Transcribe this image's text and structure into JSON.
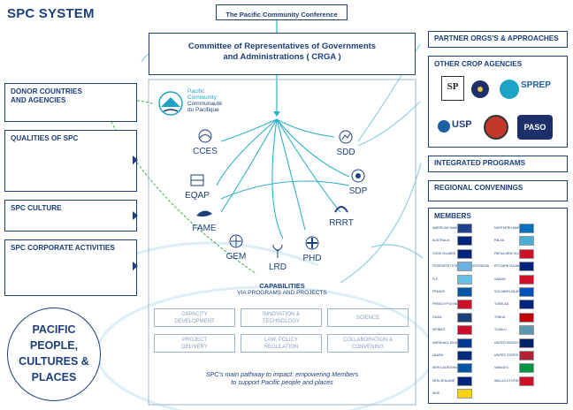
{
  "title": "SPC SYSTEM",
  "conference": "The Pacific Community Conference",
  "crga": {
    "line1": "Committee of Representatives of Governments",
    "line2": "and Administrations (  CRGA )"
  },
  "left_boxes": [
    "DONOR COUNTRIES\nAND AGENCIES",
    "QUALITIES OF SPC",
    "SPC CULTURE",
    "SPC CORPORATE ACTIVITIES"
  ],
  "right_boxes": {
    "partner": "PARTNER ORGS'S & APPROACHES",
    "crop": "OTHER CROP AGENCIES",
    "integrated": "INTEGRATED PROGRAMS",
    "regional": "REGIONAL CONVENINGS",
    "members": "MEMBERS"
  },
  "logo": {
    "line1": "Pacific",
    "line2": "Community",
    "line3": "Communauté",
    "line4": "du Pacifique"
  },
  "divisions": [
    "CCES",
    "EQAP",
    "FAME",
    "GEM",
    "LRD",
    "PHD",
    "RRRT",
    "SDP",
    "SDD"
  ],
  "capabilities": {
    "heading": "CAPABILITIES",
    "sub": "VIA PROGRAMS AND PROJECTS",
    "items": [
      "CAPACITY\nDEVELOPMENT",
      "INNOVATION &\nTECHNOLOGY",
      "SCIENCE",
      "PROJECT\nDELIVERY",
      "LAW, POLICY\nREGULATION",
      "COLLABORATION &\nCONVENING"
    ]
  },
  "pathway": {
    "line1": "SPC's main pathway to impact: empowering Members",
    "line2": "to support Pacific people and places"
  },
  "circle": {
    "line1": "PACIFIC",
    "line2": "PEOPLE,",
    "line3": "CULTURES &",
    "line4": "PLACES"
  },
  "crop_agencies": [
    "SPC",
    "FFA",
    "SPREP",
    "USP",
    "PIFS",
    "PASO"
  ],
  "crop_labels": {
    "sprep": "SPREP",
    "usp": "USP",
    "paso": "PASO"
  },
  "members_left": [
    {
      "name": "AMERICAN SAMOA",
      "color": "#1f3f8f"
    },
    {
      "name": "AUSTRALIA",
      "color": "#00247d"
    },
    {
      "name": "COOK ISLANDS",
      "color": "#00247d"
    },
    {
      "name": "FEDERATED STATES OF MICRONESIA",
      "color": "#6ab0e0"
    },
    {
      "name": "FIJI",
      "color": "#68bfe5"
    },
    {
      "name": "FRANCE",
      "color": "#0055a4"
    },
    {
      "name": "FRENCH POLYNESIA",
      "color": "#ce1126"
    },
    {
      "name": "GUAM",
      "color": "#1d3f7a"
    },
    {
      "name": "KIRIBATI",
      "color": "#c8102e"
    },
    {
      "name": "MARSHALL ISLANDS",
      "color": "#003893"
    },
    {
      "name": "NAURU",
      "color": "#002b7f"
    },
    {
      "name": "NEW CALEDONIA",
      "color": "#0055a4"
    },
    {
      "name": "NEW ZEALAND",
      "color": "#00247d"
    },
    {
      "name": "NIUE",
      "color": "#fcd116"
    }
  ],
  "members_right": [
    {
      "name": "NORTHERN MARIANAS",
      "color": "#0071bc"
    },
    {
      "name": "PALAU",
      "color": "#4aadd6"
    },
    {
      "name": "PAPUA NEW GUINEA",
      "color": "#ce1126"
    },
    {
      "name": "PITCAIRN ISLANDS",
      "color": "#00247d"
    },
    {
      "name": "SAMOA",
      "color": "#ce1126"
    },
    {
      "name": "SOLOMON ISLANDS",
      "color": "#0051ba"
    },
    {
      "name": "TOKELAU",
      "color": "#00247d"
    },
    {
      "name": "TONGA",
      "color": "#c10000"
    },
    {
      "name": "TUVALU",
      "color": "#5b97b1"
    },
    {
      "name": "UNITED KINGDOM",
      "color": "#012169"
    },
    {
      "name": "UNITED STATES",
      "color": "#b22234"
    },
    {
      "name": "VANUATU",
      "color": "#009543"
    },
    {
      "name": "WALLIS & FUTUNA",
      "color": "#ce1126"
    }
  ]
}
